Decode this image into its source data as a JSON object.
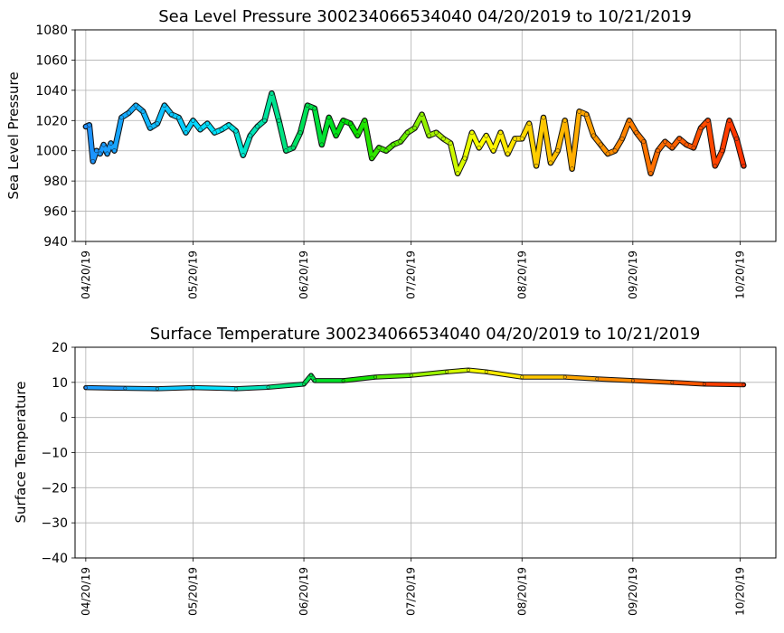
{
  "chart_data": [
    {
      "type": "line",
      "title": "Sea Level Pressure 300234066534040  04/20/2019 to 10/21/2019",
      "xlabel": "",
      "ylabel": "Sea Level Pressure",
      "x_tick_labels": [
        "04/20/19",
        "05/20/19",
        "06/20/19",
        "07/20/19",
        "08/20/19",
        "09/20/19",
        "10/20/19"
      ],
      "y_ticks": [
        940,
        960,
        980,
        1000,
        1020,
        1040,
        1060,
        1080
      ],
      "xlim": [
        "2019-04-17",
        "2019-10-30"
      ],
      "ylim": [
        940,
        1080
      ],
      "grid": true,
      "colormap_by_time": [
        "#1e90ff",
        "#00e5ff",
        "#00e000",
        "#ffff00",
        "#ff8c00",
        "#ff3000"
      ],
      "x": [
        "2019-04-20",
        "2019-04-21",
        "2019-04-22",
        "2019-04-23",
        "2019-04-24",
        "2019-04-25",
        "2019-04-26",
        "2019-04-27",
        "2019-04-28",
        "2019-04-30",
        "2019-05-02",
        "2019-05-04",
        "2019-05-06",
        "2019-05-08",
        "2019-05-10",
        "2019-05-12",
        "2019-05-14",
        "2019-05-16",
        "2019-05-18",
        "2019-05-20",
        "2019-05-22",
        "2019-05-24",
        "2019-05-26",
        "2019-05-28",
        "2019-05-30",
        "2019-06-01",
        "2019-06-03",
        "2019-06-05",
        "2019-06-07",
        "2019-06-09",
        "2019-06-11",
        "2019-06-13",
        "2019-06-15",
        "2019-06-17",
        "2019-06-19",
        "2019-06-21",
        "2019-06-23",
        "2019-06-25",
        "2019-06-27",
        "2019-06-29",
        "2019-07-01",
        "2019-07-03",
        "2019-07-05",
        "2019-07-07",
        "2019-07-09",
        "2019-07-11",
        "2019-07-13",
        "2019-07-15",
        "2019-07-17",
        "2019-07-19",
        "2019-07-21",
        "2019-07-23",
        "2019-07-25",
        "2019-07-27",
        "2019-07-29",
        "2019-07-31",
        "2019-08-02",
        "2019-08-04",
        "2019-08-06",
        "2019-08-08",
        "2019-08-10",
        "2019-08-12",
        "2019-08-14",
        "2019-08-16",
        "2019-08-18",
        "2019-08-20",
        "2019-08-22",
        "2019-08-24",
        "2019-08-26",
        "2019-08-28",
        "2019-08-30",
        "2019-09-01",
        "2019-09-03",
        "2019-09-05",
        "2019-09-07",
        "2019-09-09",
        "2019-09-11",
        "2019-09-13",
        "2019-09-15",
        "2019-09-17",
        "2019-09-19",
        "2019-09-21",
        "2019-09-23",
        "2019-09-25",
        "2019-09-27",
        "2019-09-29",
        "2019-10-01",
        "2019-10-03",
        "2019-10-05",
        "2019-10-07",
        "2019-10-09",
        "2019-10-11",
        "2019-10-13",
        "2019-10-15",
        "2019-10-17",
        "2019-10-19",
        "2019-10-21"
      ],
      "values": [
        1016,
        1017,
        993,
        1000,
        998,
        1004,
        998,
        1005,
        1000,
        1022,
        1025,
        1030,
        1026,
        1015,
        1018,
        1030,
        1024,
        1022,
        1012,
        1020,
        1014,
        1018,
        1012,
        1014,
        1017,
        1013,
        997,
        1010,
        1016,
        1020,
        1038,
        1020,
        1000,
        1002,
        1012,
        1030,
        1028,
        1004,
        1022,
        1010,
        1020,
        1018,
        1010,
        1020,
        995,
        1002,
        1000,
        1004,
        1006,
        1012,
        1015,
        1024,
        1010,
        1012,
        1008,
        1005,
        985,
        995,
        1012,
        1002,
        1010,
        1000,
        1012,
        998,
        1008,
        1008,
        1018,
        990,
        1022,
        992,
        1000,
        1020,
        988,
        1026,
        1024,
        1010,
        1004,
        998,
        1000,
        1008,
        1020,
        1012,
        1006,
        985,
        1000,
        1006,
        1002,
        1008,
        1004,
        1002,
        1015,
        1020,
        990,
        1000,
        1020,
        1008,
        990
      ]
    },
    {
      "type": "line",
      "title": "Surface Temperature 300234066534040  04/20/2019 to 10/21/2019",
      "xlabel": "",
      "ylabel": "Surface Temperature",
      "x_tick_labels": [
        "04/20/19",
        "05/20/19",
        "06/20/19",
        "07/20/19",
        "08/20/19",
        "09/20/19",
        "10/20/19"
      ],
      "y_ticks": [
        -40,
        -30,
        -20,
        -10,
        0,
        10,
        20
      ],
      "y_tick_labels": [
        "−40",
        "−30",
        "−20",
        "−10",
        "0",
        "10",
        "20"
      ],
      "xlim": [
        "2019-04-17",
        "2019-10-30"
      ],
      "ylim": [
        -40,
        20
      ],
      "grid": true,
      "colormap_by_time": [
        "#1e90ff",
        "#00e5ff",
        "#00e000",
        "#ffff00",
        "#ff8c00",
        "#ff3000"
      ],
      "x": [
        "2019-04-20",
        "2019-05-01",
        "2019-05-10",
        "2019-05-20",
        "2019-06-01",
        "2019-06-10",
        "2019-06-20",
        "2019-06-22",
        "2019-06-23",
        "2019-07-01",
        "2019-07-10",
        "2019-07-20",
        "2019-07-30",
        "2019-08-05",
        "2019-08-10",
        "2019-08-20",
        "2019-09-01",
        "2019-09-10",
        "2019-09-20",
        "2019-10-01",
        "2019-10-10",
        "2019-10-21"
      ],
      "values": [
        8.5,
        8.3,
        8.2,
        8.5,
        8.2,
        8.6,
        9.5,
        12,
        10.5,
        10.5,
        11.5,
        12,
        13,
        13.5,
        13,
        11.5,
        11.5,
        11,
        10.5,
        10,
        9.5,
        9.3
      ]
    }
  ]
}
